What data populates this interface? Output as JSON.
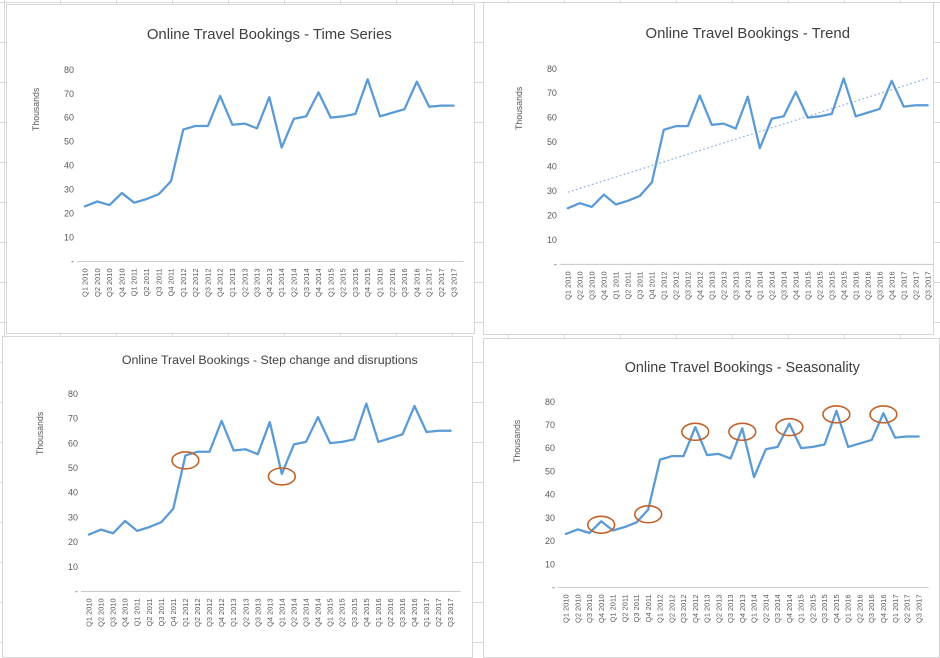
{
  "app": {
    "description": "Spreadsheet sheet with four embedded line charts of the same quarterly series"
  },
  "colors": {
    "series_line": "#5B9BD5",
    "trendline": "#93B3DE",
    "annotation": "#C0622C",
    "axis_text": "#595959",
    "title_text": "#404040",
    "axis_line": "#C6C6C6"
  },
  "chart_data": [
    {
      "type": "line",
      "title": "Online Travel Bookings - Time Series",
      "ylabel": "Thousands",
      "xlabel": "",
      "ylim": [
        0,
        80
      ],
      "grid": false,
      "legend": "none",
      "yticks": [
        "80",
        "70",
        "60",
        "50",
        "40",
        "30",
        "20",
        "10",
        "-"
      ],
      "categories": [
        "Q1 2010",
        "Q2 2010",
        "Q3 2010",
        "Q4 2010",
        "Q1 2011",
        "Q2 2011",
        "Q3 2011",
        "Q4 2011",
        "Q1 2012",
        "Q2 2012",
        "Q3 2012",
        "Q4 2012",
        "Q1 2013",
        "Q2 2013",
        "Q3 2013",
        "Q4 2013",
        "Q1 2014",
        "Q2 2014",
        "Q3 2014",
        "Q4 2014",
        "Q1 2015",
        "Q2 2015",
        "Q3 2015",
        "Q4 2015",
        "Q1 2016",
        "Q2 2016",
        "Q3 2016",
        "Q4 2016",
        "Q1 2017",
        "Q2 2017",
        "Q3 2017"
      ],
      "values": [
        23,
        25,
        23.5,
        28.5,
        24.5,
        26,
        28,
        33.5,
        55,
        56.5,
        56.5,
        69,
        57,
        57.5,
        55.5,
        68.5,
        47.5,
        59.5,
        60.5,
        70.5,
        60,
        60.5,
        61.5,
        76,
        60.5,
        62,
        63.5,
        75,
        64.5,
        65,
        65
      ]
    },
    {
      "type": "line",
      "title": "Online Travel Bookings - Trend",
      "ylabel": "Thousands",
      "xlabel": "",
      "ylim": [
        0,
        80
      ],
      "grid": false,
      "legend": "none",
      "yticks": [
        "80",
        "70",
        "60",
        "50",
        "40",
        "30",
        "20",
        "10",
        "-"
      ],
      "categories": [
        "Q1 2010",
        "Q2 2010",
        "Q3 2010",
        "Q4 2010",
        "Q1 2011",
        "Q2 2011",
        "Q3 2011",
        "Q4 2011",
        "Q1 2012",
        "Q2 2012",
        "Q3 2012",
        "Q4 2012",
        "Q1 2013",
        "Q2 2013",
        "Q3 2013",
        "Q4 2013",
        "Q1 2014",
        "Q2 2014",
        "Q3 2014",
        "Q4 2014",
        "Q1 2015",
        "Q2 2015",
        "Q3 2015",
        "Q4 2015",
        "Q1 2016",
        "Q2 2016",
        "Q3 2016",
        "Q4 2016",
        "Q1 2017",
        "Q2 2017",
        "Q3 2017"
      ],
      "values": [
        23,
        25,
        23.5,
        28.5,
        24.5,
        26,
        28,
        33.5,
        55,
        56.5,
        56.5,
        69,
        57,
        57.5,
        55.5,
        68.5,
        47.5,
        59.5,
        60.5,
        70.5,
        60,
        60.5,
        61.5,
        76,
        60.5,
        62,
        63.5,
        75,
        64.5,
        65,
        65
      ],
      "trendline": {
        "style": "dotted",
        "start_value": 29.5,
        "end_value": 76
      }
    },
    {
      "type": "line",
      "title": "Online Travel Bookings - Step change and disruptions",
      "ylabel": "Thousands",
      "xlabel": "",
      "ylim": [
        0,
        80
      ],
      "grid": false,
      "legend": "none",
      "yticks": [
        "80",
        "70",
        "60",
        "50",
        "40",
        "30",
        "20",
        "10",
        "-"
      ],
      "categories": [
        "Q1 2010",
        "Q2 2010",
        "Q3 2010",
        "Q4 2010",
        "Q1 2011",
        "Q2 2011",
        "Q3 2011",
        "Q4 2011",
        "Q1 2012",
        "Q2 2012",
        "Q3 2012",
        "Q4 2012",
        "Q1 2013",
        "Q2 2013",
        "Q3 2013",
        "Q4 2013",
        "Q1 2014",
        "Q2 2014",
        "Q3 2014",
        "Q4 2014",
        "Q1 2015",
        "Q2 2015",
        "Q3 2015",
        "Q4 2015",
        "Q1 2016",
        "Q2 2016",
        "Q3 2016",
        "Q4 2016",
        "Q1 2017",
        "Q2 2017",
        "Q3 2017"
      ],
      "values": [
        23,
        25,
        23.5,
        28.5,
        24.5,
        26,
        28,
        33.5,
        55,
        56.5,
        56.5,
        69,
        57,
        57.5,
        55.5,
        68.5,
        47.5,
        59.5,
        60.5,
        70.5,
        60,
        60.5,
        61.5,
        76,
        60.5,
        62,
        63.5,
        75,
        64.5,
        65,
        65
      ],
      "annotations": [
        {
          "shape": "ellipse",
          "category": "Q1 2012",
          "index": 8,
          "center_value": 53
        },
        {
          "shape": "ellipse",
          "category": "Q1 2014",
          "index": 16,
          "center_value": 46.5
        }
      ]
    },
    {
      "type": "line",
      "title": "Online Travel Bookings - Seasonality",
      "ylabel": "Thousands",
      "xlabel": "",
      "ylim": [
        0,
        80
      ],
      "grid": false,
      "legend": "none",
      "yticks": [
        "80",
        "70",
        "60",
        "50",
        "40",
        "30",
        "20",
        "10",
        "-"
      ],
      "categories": [
        "Q1 2010",
        "Q2 2010",
        "Q3 2010",
        "Q4 2010",
        "Q1 2011",
        "Q2 2011",
        "Q3 2011",
        "Q4 2011",
        "Q1 2012",
        "Q2 2012",
        "Q3 2012",
        "Q4 2012",
        "Q1 2013",
        "Q2 2013",
        "Q3 2013",
        "Q4 2013",
        "Q1 2014",
        "Q2 2014",
        "Q3 2014",
        "Q4 2014",
        "Q1 2015",
        "Q2 2015",
        "Q3 2015",
        "Q4 2015",
        "Q1 2016",
        "Q2 2016",
        "Q3 2016",
        "Q4 2016",
        "Q1 2017",
        "Q2 2017",
        "Q3 2017"
      ],
      "values": [
        23,
        25,
        23.5,
        28.5,
        24.5,
        26,
        28,
        33.5,
        55,
        56.5,
        56.5,
        69,
        57,
        57.5,
        55.5,
        68.5,
        47.5,
        59.5,
        60.5,
        70.5,
        60,
        60.5,
        61.5,
        76,
        60.5,
        62,
        63.5,
        75,
        64.5,
        65,
        65
      ],
      "annotations": [
        {
          "shape": "ellipse",
          "category": "Q4 2010",
          "index": 3,
          "center_value": 27
        },
        {
          "shape": "ellipse",
          "category": "Q4 2011",
          "index": 7,
          "center_value": 31.5
        },
        {
          "shape": "ellipse",
          "category": "Q4 2012",
          "index": 11,
          "center_value": 67
        },
        {
          "shape": "ellipse",
          "category": "Q4 2013",
          "index": 15,
          "center_value": 67
        },
        {
          "shape": "ellipse",
          "category": "Q4 2014",
          "index": 19,
          "center_value": 69
        },
        {
          "shape": "ellipse",
          "category": "Q4 2015",
          "index": 23,
          "center_value": 74.5
        },
        {
          "shape": "ellipse",
          "category": "Q4 2016",
          "index": 27,
          "center_value": 74.5
        }
      ]
    }
  ]
}
